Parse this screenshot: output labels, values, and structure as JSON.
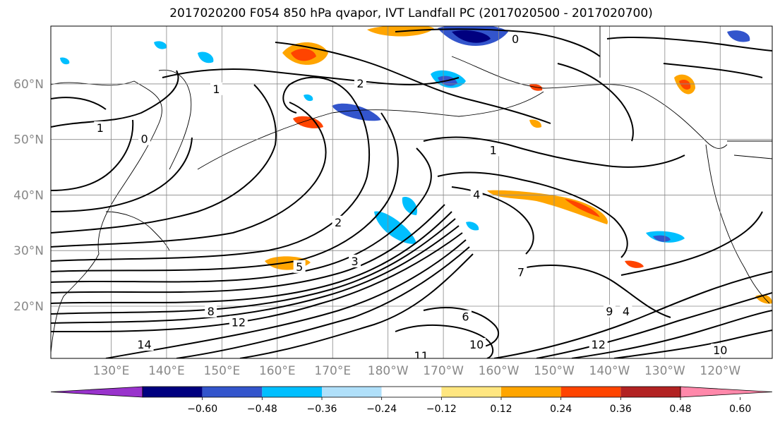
{
  "title": "2017020200 F054 850 hPa qvapor, IVT Landfall PC (2017020500 - 2017020700)",
  "latitudes": [
    {
      "label": "60°N",
      "value": 60
    },
    {
      "label": "50°N",
      "value": 50
    },
    {
      "label": "40°N",
      "value": 40
    },
    {
      "label": "30°N",
      "value": 30
    },
    {
      "label": "20°N",
      "value": 20
    }
  ],
  "longitudes": [
    {
      "label": "130°E",
      "value": 130
    },
    {
      "label": "140°E",
      "value": 140
    },
    {
      "label": "150°E",
      "value": 150
    },
    {
      "label": "160°E",
      "value": 160
    },
    {
      "label": "170°E",
      "value": 170
    },
    {
      "label": "180°W",
      "value": 180
    },
    {
      "label": "170°W",
      "value": 190
    },
    {
      "label": "160°W",
      "value": 200
    },
    {
      "label": "150°W",
      "value": 210
    },
    {
      "label": "140°W",
      "value": 220
    },
    {
      "label": "130°W",
      "value": 230
    },
    {
      "label": "120°W",
      "value": 240
    }
  ],
  "colorbar": {
    "colors": [
      "#9933cc",
      "#00007f",
      "#3355cc",
      "#00bfff",
      "#b0e0fa",
      "#ffffff",
      "#ffe680",
      "#ffa500",
      "#ff4400",
      "#b22222",
      "#ff88aa"
    ],
    "labels": [
      "−0.60",
      "−0.48",
      "−0.36",
      "−0.24",
      "−0.12",
      "0.12",
      "0.24",
      "0.36",
      "0.48",
      "0.60"
    ]
  },
  "contour_labels": [
    {
      "text": "0",
      "lon": 203,
      "lat": 68
    },
    {
      "text": "1",
      "lon": 149,
      "lat": 59
    },
    {
      "text": "2",
      "lon": 175,
      "lat": 60
    },
    {
      "text": "1",
      "lon": 128,
      "lat": 52
    },
    {
      "text": "0",
      "lon": 136,
      "lat": 50
    },
    {
      "text": "2",
      "lon": 171,
      "lat": 35
    },
    {
      "text": "3",
      "lon": 174,
      "lat": 28
    },
    {
      "text": "4",
      "lon": 196,
      "lat": 40
    },
    {
      "text": "1",
      "lon": 199,
      "lat": 48
    },
    {
      "text": "5",
      "lon": 164,
      "lat": 27
    },
    {
      "text": "6",
      "lon": 194,
      "lat": 18
    },
    {
      "text": "7",
      "lon": 204,
      "lat": 26
    },
    {
      "text": "8",
      "lon": 148,
      "lat": 19
    },
    {
      "text": "9",
      "lon": 220,
      "lat": 19
    },
    {
      "text": "10",
      "lon": 196,
      "lat": 13
    },
    {
      "text": "12",
      "lon": 153,
      "lat": 17
    },
    {
      "text": "14",
      "lon": 136,
      "lat": 13
    },
    {
      "text": "11",
      "lon": 186,
      "lat": 11
    },
    {
      "text": "10",
      "lon": 240,
      "lat": 12
    },
    {
      "text": "12",
      "lon": 218,
      "lat": 13
    },
    {
      "text": "4",
      "lon": 223,
      "lat": 19
    }
  ]
}
